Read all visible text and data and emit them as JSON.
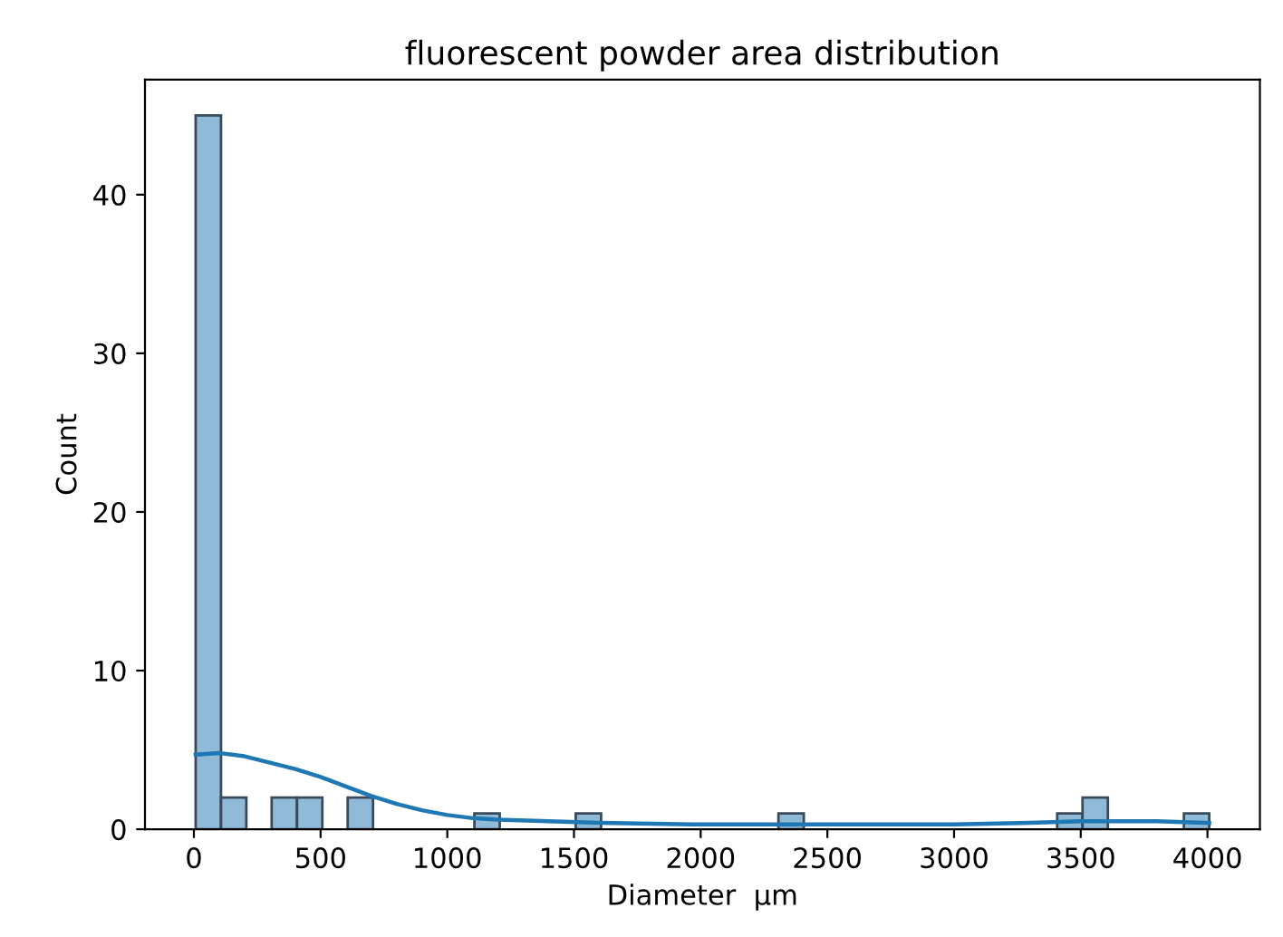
{
  "chart_data": {
    "type": "histogram",
    "title": "fluorescent powder area distribution",
    "xlabel": "Diameter  µm",
    "ylabel": "Count",
    "series": [
      {
        "color": "#8fbbd9",
        "bins": [
          7,
          107,
          207,
          307,
          407,
          507,
          607,
          707,
          807,
          907,
          1007,
          1107,
          1207,
          1307,
          1407,
          1507,
          1607,
          1707,
          1807,
          1907,
          2007,
          2107,
          2207,
          2307,
          2407,
          2507,
          2607,
          2707,
          2807,
          2907,
          3007,
          3107,
          3207,
          3307,
          3407,
          3507,
          3607,
          3707,
          3807,
          3907,
          4007
        ],
        "values": [
          45,
          2,
          0,
          2,
          2,
          0,
          2,
          0,
          0,
          0,
          0,
          1,
          0,
          0,
          0,
          1,
          0,
          0,
          0,
          0,
          0,
          0,
          0,
          1,
          0,
          0,
          0,
          0,
          0,
          0,
          0,
          0,
          0,
          0,
          1,
          2,
          0,
          0,
          0,
          1
        ]
      },
      {
        "type": "line",
        "color": "#1f77b4",
        "x": [
          7,
          100,
          200,
          300,
          400,
          500,
          600,
          700,
          800,
          900,
          1000,
          1100,
          1200,
          1400,
          1600,
          2000,
          2500,
          3000,
          3300,
          3500,
          3600,
          3800,
          4007
        ],
        "values": [
          4.7,
          4.8,
          4.6,
          4.2,
          3.8,
          3.3,
          2.7,
          2.1,
          1.6,
          1.2,
          0.9,
          0.7,
          0.6,
          0.5,
          0.4,
          0.3,
          0.3,
          0.3,
          0.4,
          0.5,
          0.5,
          0.5,
          0.4
        ]
      }
    ],
    "xlim": [
      -193,
      4207
    ],
    "ylim": [
      0,
      47.25
    ],
    "xticks": [
      0,
      500,
      1000,
      1500,
      2000,
      2500,
      3000,
      3500,
      4000
    ],
    "yticks": [
      0,
      10,
      20,
      30,
      40
    ]
  }
}
